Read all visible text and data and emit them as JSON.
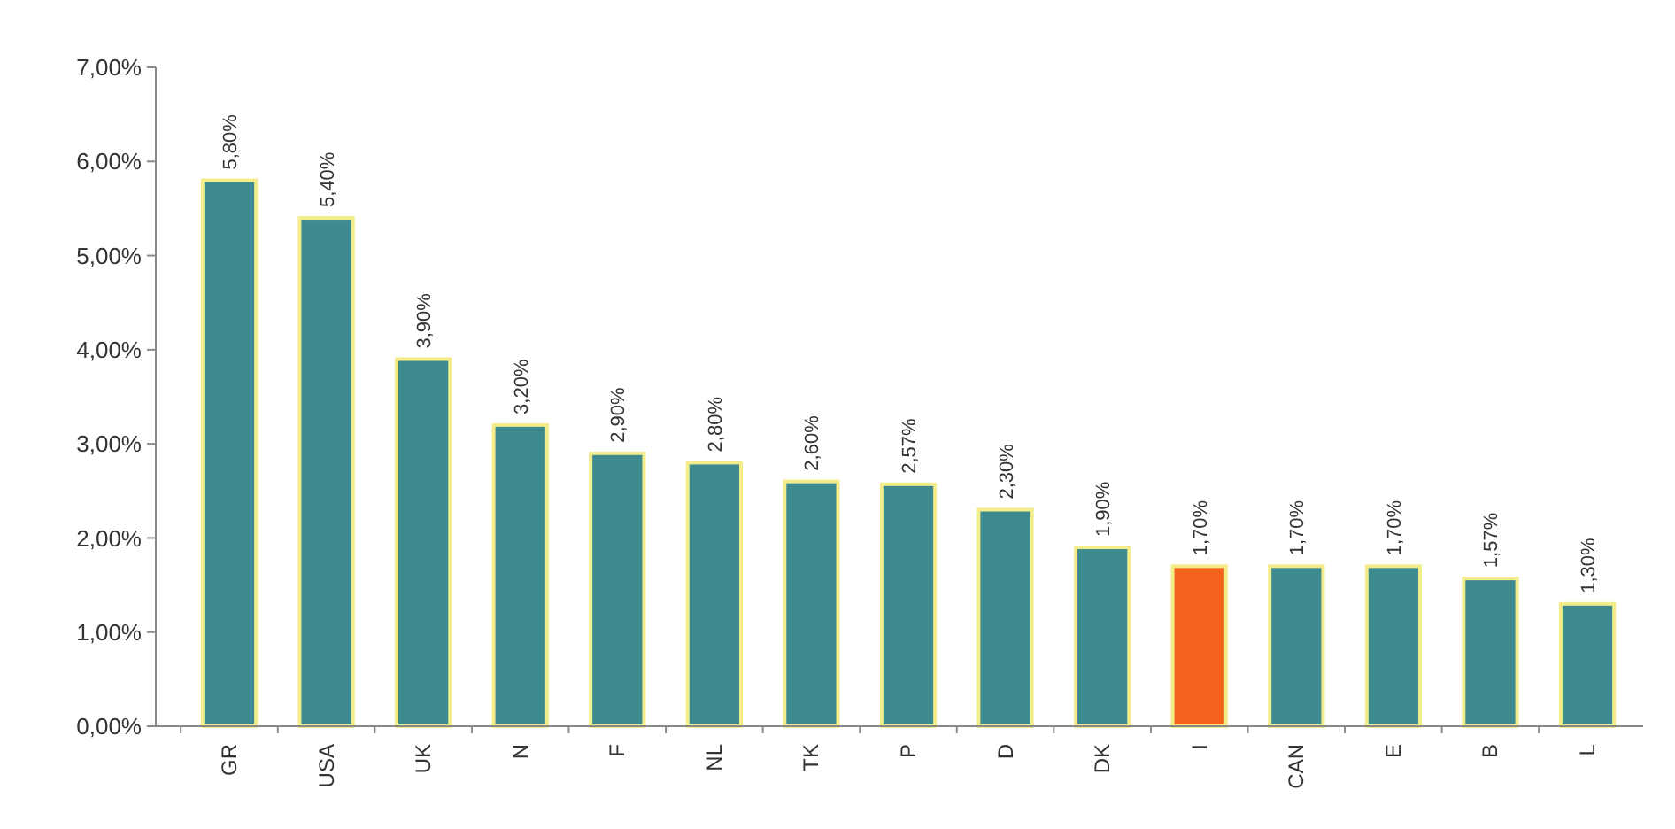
{
  "chart_data": {
    "type": "bar",
    "categories": [
      "GR",
      "USA",
      "UK",
      "N",
      "F",
      "NL",
      "TK",
      "P",
      "D",
      "DK",
      "I",
      "CAN",
      "E",
      "B",
      "L"
    ],
    "values": [
      5.8,
      5.4,
      3.9,
      3.2,
      2.9,
      2.8,
      2.6,
      2.57,
      2.3,
      1.9,
      1.7,
      1.7,
      1.7,
      1.57,
      1.3
    ],
    "colors": [
      "#3d8a8f",
      "#3d8a8f",
      "#3d8a8f",
      "#3d8a8f",
      "#3d8a8f",
      "#3d8a8f",
      "#3d8a8f",
      "#3d8a8f",
      "#3d8a8f",
      "#3d8a8f",
      "#f4621e",
      "#3d8a8f",
      "#3d8a8f",
      "#3d8a8f",
      "#3d8a8f"
    ],
    "value_labels": [
      "5,80%",
      "5,40%",
      "3,90%",
      "3,20%",
      "2,90%",
      "2,80%",
      "2,60%",
      "2,57%",
      "2,30%",
      "1,90%",
      "1,70%",
      "1,70%",
      "1,70%",
      "1,57%",
      "1,30%"
    ],
    "ylim": [
      0,
      7
    ],
    "yticks": [
      {
        "value": 0,
        "label": "0,00%"
      },
      {
        "value": 1,
        "label": "1,00%"
      },
      {
        "value": 2,
        "label": "2,00%"
      },
      {
        "value": 3,
        "label": "3,00%"
      },
      {
        "value": 4,
        "label": "4,00%"
      },
      {
        "value": 5,
        "label": "5,00%"
      },
      {
        "value": 6,
        "label": "6,00%"
      },
      {
        "value": 7,
        "label": "7,00%"
      }
    ],
    "grid": false
  }
}
